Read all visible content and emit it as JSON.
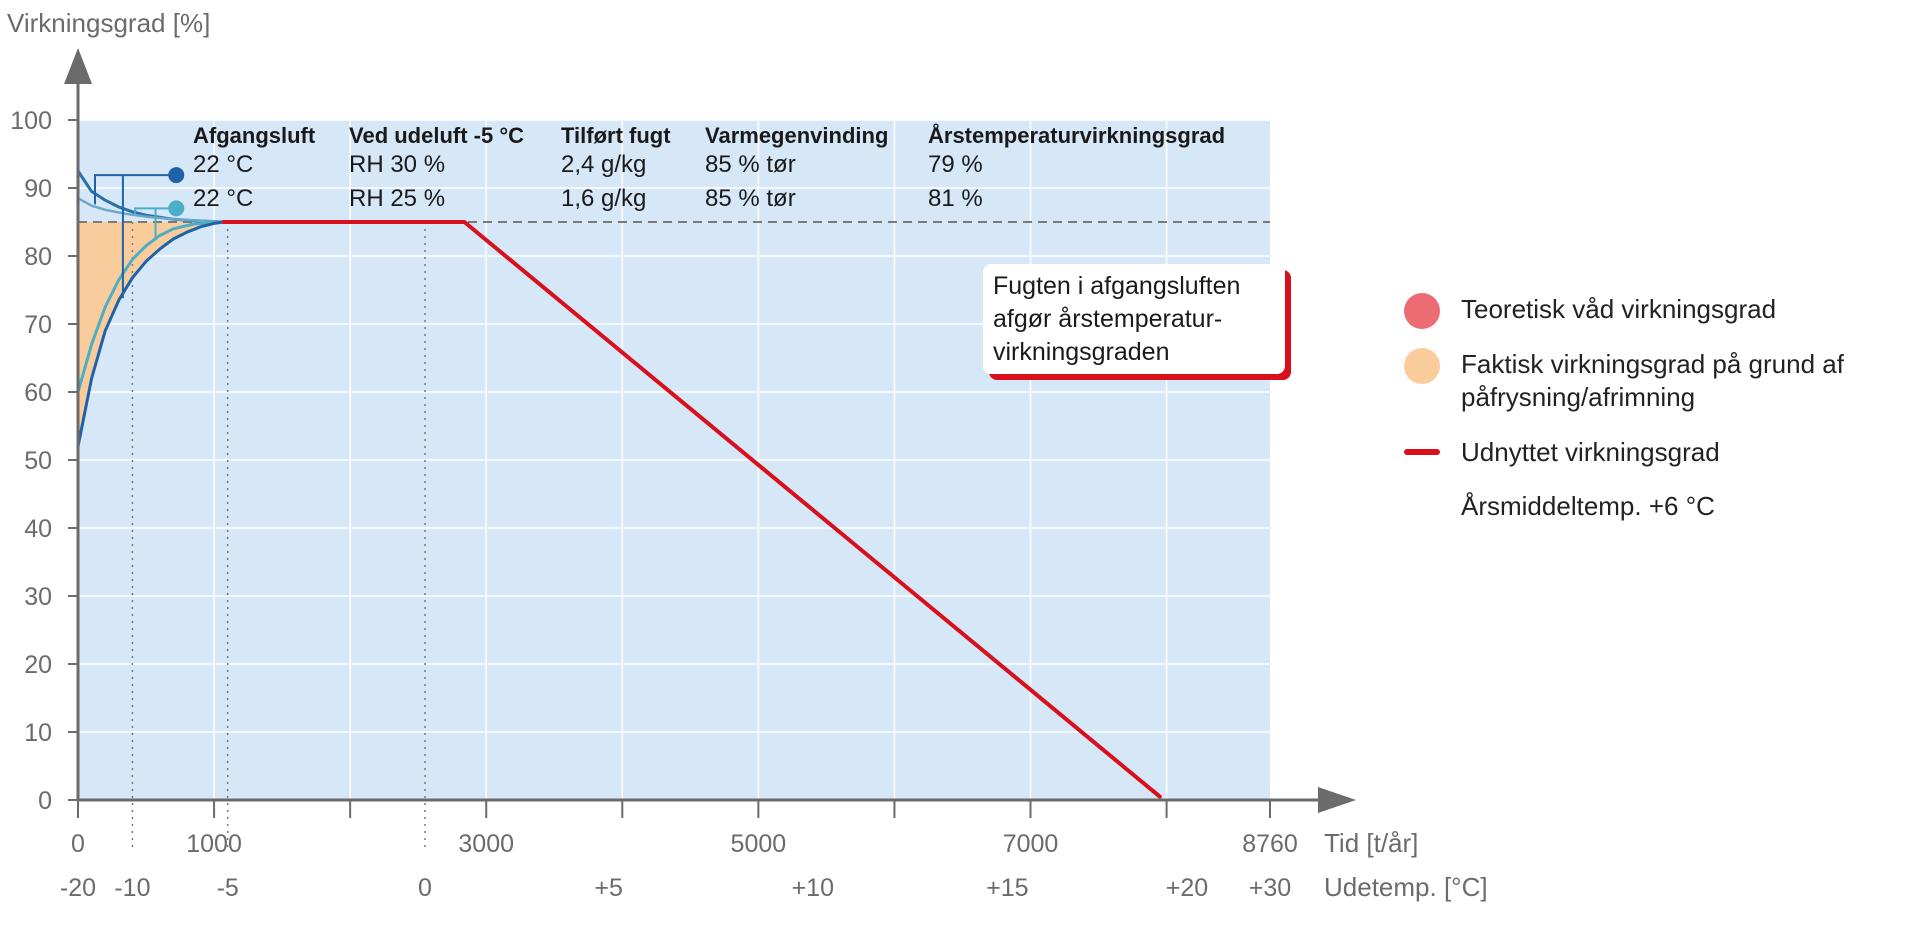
{
  "chart_data": {
    "type": "line",
    "ylabel": "Virkningsgrad [%]",
    "ylim": [
      0,
      100
    ],
    "yticks": [
      "0",
      "10",
      "20",
      "30",
      "40",
      "50",
      "60",
      "70",
      "80",
      "90",
      "100"
    ],
    "xlabel": "Tid [t/år]",
    "xlim": [
      0,
      8760
    ],
    "xtick_labels": [
      {
        "label": "0",
        "x": 0
      },
      {
        "label": "1000",
        "x": 1000
      },
      {
        "label": "3000",
        "x": 3000
      },
      {
        "label": "5000",
        "x": 5000
      },
      {
        "label": "7000",
        "x": 7000
      },
      {
        "label": "8760",
        "x": 8760
      }
    ],
    "xtick_marks": [
      0,
      1000,
      2000,
      3000,
      4000,
      5000,
      6000,
      7000,
      8000,
      8760
    ],
    "temp_axis_label": "Udetemp. [°C]",
    "temp_ticks": [
      {
        "label": "-20",
        "x": 0
      },
      {
        "label": "-10",
        "x": 400
      },
      {
        "label": "-5",
        "x": 1100
      },
      {
        "label": "0",
        "x": 2550
      },
      {
        "label": "+5",
        "x": 3900
      },
      {
        "label": "+10",
        "x": 5400
      },
      {
        "label": "+15",
        "x": 6830
      },
      {
        "label": "+20",
        "x": 8150
      },
      {
        "label": "+30",
        "x": 8760
      }
    ],
    "grid": true,
    "table": {
      "headers": [
        "Afgangsluft",
        "Ved udeluft -5 °C",
        "Tilført fugt",
        "Varmegenvinding",
        "Årstemperaturvirkningsgrad"
      ],
      "rows": [
        [
          "22 °C",
          "RH 30 %",
          "2,4 g/kg",
          "85 % tør",
          "79 %"
        ],
        [
          "22 °C",
          "RH 25 %",
          "1,6 g/kg",
          "85 % tør",
          "81 %"
        ]
      ],
      "marker_colors": [
        "#1f62a8",
        "#4aaec6"
      ]
    },
    "reference_line": {
      "y": 85,
      "style": "dashed"
    },
    "series": [
      {
        "name": "Udnyttet virkningsgrad",
        "color": "#d8101c",
        "points": [
          [
            1070,
            85
          ],
          [
            2840,
            85
          ],
          [
            7950,
            0.5
          ]
        ]
      },
      {
        "name": "",
        "color": "#1f62a8",
        "points": [
          [
            0,
            52
          ],
          [
            100,
            62
          ],
          [
            200,
            69
          ],
          [
            300,
            73.5
          ],
          [
            400,
            76.8
          ],
          [
            500,
            79.2
          ],
          [
            600,
            81
          ],
          [
            700,
            82.5
          ],
          [
            800,
            83.5
          ],
          [
            900,
            84.3
          ],
          [
            1000,
            84.8
          ],
          [
            1070,
            85
          ]
        ]
      },
      {
        "name": "",
        "color": "#4aaec6",
        "points": [
          [
            0,
            60
          ],
          [
            100,
            67
          ],
          [
            200,
            72.5
          ],
          [
            300,
            76.5
          ],
          [
            400,
            79.5
          ],
          [
            500,
            81.5
          ],
          [
            600,
            83
          ],
          [
            700,
            84
          ],
          [
            850,
            84.7
          ],
          [
            1070,
            85
          ]
        ]
      },
      {
        "name": "",
        "color": "#2c6fa8",
        "points": [
          [
            0,
            92.5
          ],
          [
            100,
            89.5
          ],
          [
            200,
            88.2
          ],
          [
            300,
            87.2
          ],
          [
            400,
            86.5
          ],
          [
            500,
            86
          ],
          [
            600,
            85.7
          ],
          [
            700,
            85.4
          ],
          [
            850,
            85.2
          ],
          [
            1070,
            85
          ]
        ]
      },
      {
        "name": "",
        "color": "#6aa8c6",
        "points": [
          [
            0,
            88.5
          ],
          [
            100,
            87.4
          ],
          [
            200,
            86.8
          ],
          [
            350,
            86.2
          ],
          [
            500,
            85.8
          ],
          [
            700,
            85.4
          ],
          [
            1070,
            85
          ]
        ]
      }
    ],
    "areas": [
      {
        "name": "Teoretisk våd virkningsgrad",
        "color": "#eb6c72",
        "from_y": 85,
        "to_series": 2
      },
      {
        "name": "Faktisk virkningsgrad på grund af påfrysning/afrimning",
        "color": "#fbcc9b",
        "from_series": 1,
        "to_y": 85
      }
    ],
    "annotation": {
      "lines": [
        "Fugten i afgangsluften",
        "afgør årstemperatur-",
        "virkningsgraden"
      ],
      "border_color": "#d8101c"
    },
    "legend": {
      "position": "right",
      "items": [
        {
          "label": "Teoretisk våd virkningsgrad",
          "marker": "dot",
          "color": "#eb6c72"
        },
        {
          "label": "Faktisk virkningsgrad på grund af påfrysning/afrimning",
          "marker": "dot",
          "color": "#fbcc9b"
        },
        {
          "label": "Udnyttet virkningsgrad",
          "marker": "line",
          "color": "#d8101c"
        },
        {
          "label": "Årsmiddeltemp. +6 °C",
          "marker": "none",
          "color": ""
        }
      ]
    },
    "plot_bg": "#d6e7f8",
    "axis_color": "#6b6b6b"
  }
}
